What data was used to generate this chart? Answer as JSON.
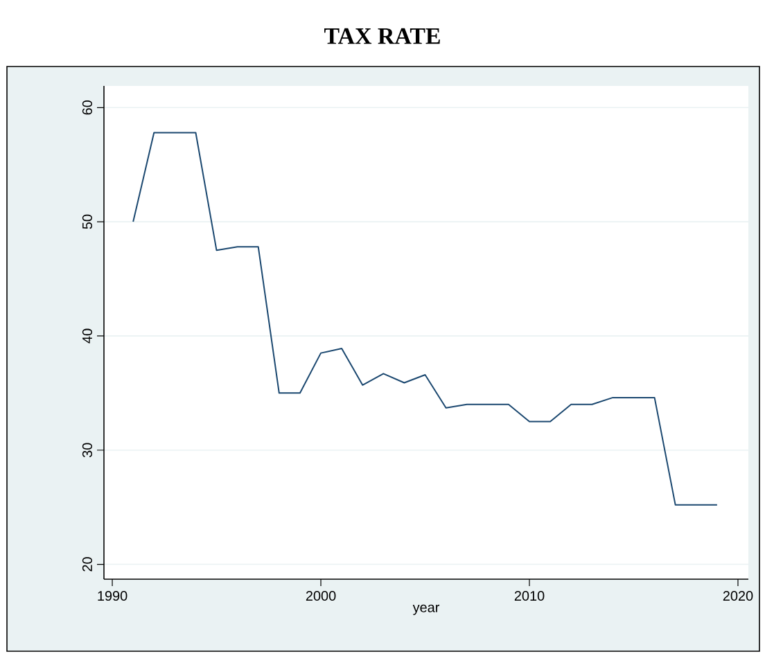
{
  "chart_data": {
    "type": "line",
    "title": "TAX RATE",
    "xlabel": "year",
    "x": [
      1991,
      1992,
      1993,
      1994,
      1995,
      1996,
      1997,
      1998,
      1999,
      2000,
      2001,
      2002,
      2003,
      2004,
      2005,
      2006,
      2007,
      2008,
      2009,
      2010,
      2011,
      2012,
      2013,
      2014,
      2015,
      2016,
      2017,
      2018,
      2019
    ],
    "series": [
      {
        "color": "#1a476f",
        "values": [
          50,
          57.8,
          57.8,
          57.8,
          47.5,
          47.8,
          47.8,
          35,
          35,
          38.5,
          38.9,
          35.7,
          36.7,
          35.9,
          36.6,
          33.7,
          34,
          34,
          34,
          32.5,
          32.5,
          34,
          34,
          34.6,
          34.6,
          34.6,
          25.2,
          25.2,
          25.2
        ]
      }
    ],
    "xlim": [
      1989.6,
      2020.5
    ],
    "ylim": [
      18.7,
      61.9
    ],
    "xticks": [
      1990,
      2000,
      2010,
      2020
    ],
    "yticks": [
      20,
      30,
      40,
      50,
      60
    ],
    "grid": "y",
    "marker": "none",
    "line_style": "solid"
  }
}
